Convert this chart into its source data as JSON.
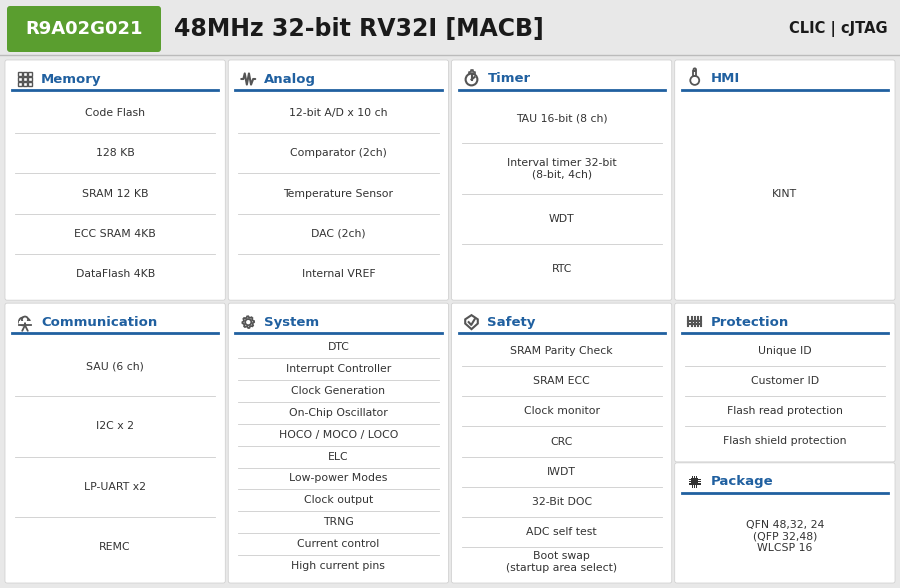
{
  "title_chip": "R9A02G021",
  "title_main": "48MHz 32-bit RV32I [MACB]",
  "title_right": "CLIC | cJTAG",
  "header_bg": "#5a9e2f",
  "header_text_color": "#ffffff",
  "body_bg": "#e8e8e8",
  "card_bg": "#ffffff",
  "section_title_color": "#2060a0",
  "line_color": "#2060a0",
  "text_color": "#333333",
  "separator_color": "#cccccc",
  "sections": [
    {
      "icon": "memory",
      "title": "Memory",
      "items": [
        "Code Flash",
        "128 KB",
        "SRAM 12 KB",
        "ECC SRAM 4KB",
        "DataFlash 4KB"
      ],
      "row": 0,
      "col": 0
    },
    {
      "icon": "analog",
      "title": "Analog",
      "items": [
        "12-bit A/D x 10 ch",
        "Comparator (2ch)",
        "Temperature Sensor",
        "DAC (2ch)",
        "Internal VREF"
      ],
      "row": 0,
      "col": 1
    },
    {
      "icon": "timer",
      "title": "Timer",
      "items": [
        "TAU 16-bit (8 ch)",
        "Interval timer 32-bit\n(8-bit, 4ch)",
        "WDT",
        "RTC"
      ],
      "row": 0,
      "col": 2
    },
    {
      "icon": "hmi",
      "title": "HMI",
      "items": [
        "KINT"
      ],
      "row": 0,
      "col": 3
    },
    {
      "icon": "comm",
      "title": "Communication",
      "items": [
        "SAU (6 ch)",
        "I2C x 2",
        "LP-UART x2",
        "REMC"
      ],
      "row": 1,
      "col": 0
    },
    {
      "icon": "system",
      "title": "System",
      "items": [
        "DTC",
        "Interrupt Controller",
        "Clock Generation",
        "On-Chip Oscillator",
        "HOCO / MOCO / LOCO",
        "ELC",
        "Low-power Modes",
        "Clock output",
        "TRNG",
        "Current control",
        "High current pins"
      ],
      "row": 1,
      "col": 1
    },
    {
      "icon": "safety",
      "title": "Safety",
      "items": [
        "SRAM Parity Check",
        "SRAM ECC",
        "Clock monitor",
        "CRC",
        "IWDT",
        "32-Bit DOC",
        "ADC self test",
        "Boot swap\n(startup area select)"
      ],
      "row": 1,
      "col": 2
    },
    {
      "icon": "protection",
      "title": "Protection",
      "items": [
        "Unique ID",
        "Customer ID",
        "Flash read protection",
        "Flash shield protection"
      ],
      "row": 1,
      "col": 3,
      "extra_section": true,
      "extra_title": "Package",
      "extra_icon": "package",
      "extra_items": [
        "QFN 48,32, 24\n(QFP 32,48)\nWLCSP 16"
      ]
    }
  ]
}
